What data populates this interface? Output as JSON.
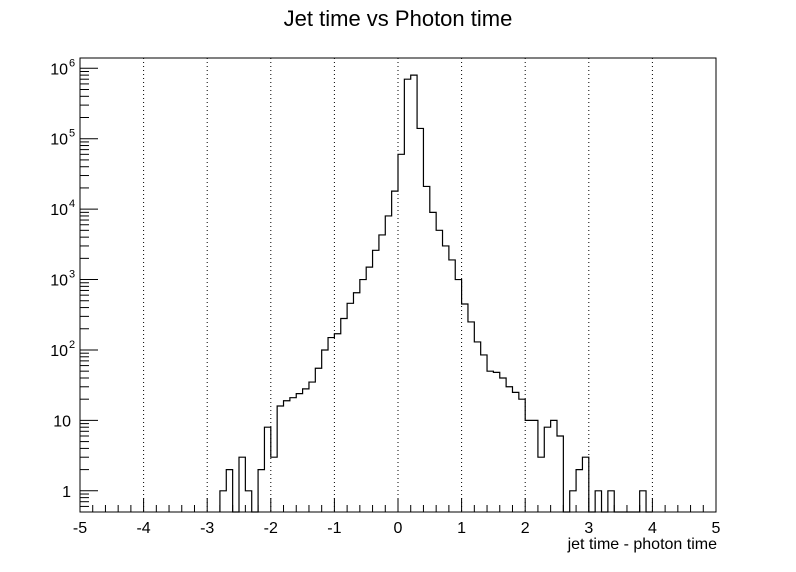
{
  "chart_data": {
    "type": "histogram",
    "title": "Jet time vs Photon time",
    "xlabel": "jet time - photon time",
    "ylabel": "",
    "xlim": [
      -5,
      5
    ],
    "ylim": [
      0.5,
      1400000
    ],
    "y_scale": "log",
    "grid": "vertical dotted at integer x",
    "x_ticks": [
      "-5",
      "-4",
      "-3",
      "-2",
      "-1",
      "0",
      "1",
      "2",
      "3",
      "4",
      "5"
    ],
    "y_ticks": [
      {
        "value": 1,
        "base": "1",
        "exp": ""
      },
      {
        "value": 10,
        "base": "10",
        "exp": ""
      },
      {
        "value": 100,
        "base": "10",
        "exp": "2"
      },
      {
        "value": 1000,
        "base": "10",
        "exp": "3"
      },
      {
        "value": 10000,
        "base": "10",
        "exp": "4"
      },
      {
        "value": 100000,
        "base": "10",
        "exp": "5"
      },
      {
        "value": 1000000,
        "base": "10",
        "exp": "6"
      }
    ],
    "bin_width": 0.1,
    "bins_x_low": [
      -2.8,
      -2.7,
      -2.6,
      -2.5,
      -2.4,
      -2.3,
      -2.2,
      -2.1,
      -2.0,
      -1.9,
      -1.8,
      -1.7,
      -1.6,
      -1.5,
      -1.4,
      -1.3,
      -1.2,
      -1.1,
      -1.0,
      -0.9,
      -0.8,
      -0.7,
      -0.6,
      -0.5,
      -0.4,
      -0.3,
      -0.2,
      -0.1,
      0.0,
      0.1,
      0.2,
      0.3,
      0.4,
      0.5,
      0.6,
      0.7,
      0.8,
      0.9,
      1.0,
      1.1,
      1.2,
      1.3,
      1.4,
      1.5,
      1.6,
      1.7,
      1.8,
      1.9,
      2.0,
      2.1,
      2.2,
      2.3,
      2.4,
      2.5,
      2.6,
      2.7,
      2.8,
      2.9,
      3.0,
      3.1,
      3.2,
      3.3,
      3.4,
      3.5,
      3.6,
      3.7,
      3.8,
      3.9
    ],
    "bin_counts": [
      1,
      2,
      0,
      3,
      1,
      0,
      2,
      8,
      3,
      16,
      19,
      21,
      24,
      28,
      35,
      55,
      100,
      150,
      170,
      280,
      460,
      650,
      1000,
      1500,
      2600,
      4300,
      8000,
      18000,
      60000,
      700000,
      800000,
      140000,
      21000,
      9000,
      5000,
      3000,
      1900,
      1000,
      450,
      250,
      130,
      85,
      50,
      48,
      40,
      30,
      25,
      20,
      10,
      10,
      3,
      8,
      10,
      6,
      0,
      1,
      2,
      3,
      0,
      1,
      0,
      1,
      0,
      0,
      0,
      0,
      1,
      0
    ]
  }
}
